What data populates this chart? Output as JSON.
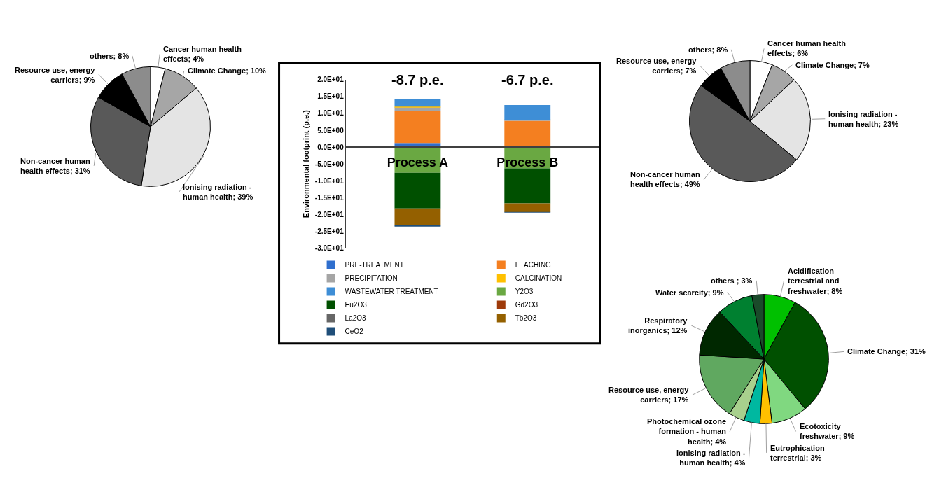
{
  "chart_data": [
    {
      "type": "pie",
      "categories": [
        "Cancer human health effects",
        "Climate Change",
        "Ionising radiation - human health",
        "Non-cancer human health effects",
        "Resource use, energy carriers",
        "others"
      ],
      "values": [
        4,
        10,
        39,
        31,
        9,
        8
      ],
      "value_labels": [
        "4%",
        "10%",
        "39%",
        "31%",
        "9%",
        "8%"
      ],
      "colors": [
        "#ffffff",
        "#a6a6a6",
        "#e4e4e4",
        "#595959",
        "#000000",
        "#8c8c8c"
      ]
    },
    {
      "type": "bar",
      "stacked": true,
      "categories": [
        "Process A",
        "Process B"
      ],
      "ylabel": "Environmental footprint (p.e.)",
      "ylim": [
        -30,
        20
      ],
      "yticks": [
        {
          "value": 20,
          "label": "2.0E+01"
        },
        {
          "value": 15,
          "label": "1.5E+01"
        },
        {
          "value": 10,
          "label": "1.0E+01"
        },
        {
          "value": 5,
          "label": "5.0E+00"
        },
        {
          "value": 0,
          "label": "0.0E+00"
        },
        {
          "value": -5,
          "label": "-5.0E+00"
        },
        {
          "value": -10,
          "label": "-1.0E+01"
        },
        {
          "value": -15,
          "label": "-1.5E+01"
        },
        {
          "value": -20,
          "label": "-2.0E+01"
        },
        {
          "value": -25,
          "label": "-2.5E+01"
        },
        {
          "value": -30,
          "label": "-3.0E+01"
        }
      ],
      "legend": "bottom",
      "annotations": [
        "-8.7 p.e.",
        "-6.7 p.e."
      ],
      "series": [
        {
          "name": "PRE-TREATMENT",
          "color": "#2f6fce",
          "values": [
            1.2,
            null
          ]
        },
        {
          "name": "LEACHING",
          "color": "#f47f20",
          "values": [
            9.4,
            7.8
          ]
        },
        {
          "name": "PRECIPITATION",
          "color": "#a5a5a5",
          "values": [
            1.2,
            0.2
          ]
        },
        {
          "name": "CALCINATION",
          "color": "#ffc000",
          "values": [
            0.2,
            0.1
          ]
        },
        {
          "name": "WASTEWATER TREATMENT",
          "color": "#3e8ed6",
          "values": [
            2.3,
            4.4
          ]
        },
        {
          "name": "Y2O3",
          "color": "#6aa842",
          "values": [
            -7.6,
            -6.3
          ]
        },
        {
          "name": "Eu2O3",
          "color": "#005000",
          "values": [
            -10.6,
            -10.4
          ]
        },
        {
          "name": "Gd2O3",
          "color": "#9e3a0a",
          "values": [
            null,
            null
          ]
        },
        {
          "name": "La2O3",
          "color": "#666666",
          "values": [
            null,
            null
          ]
        },
        {
          "name": "Tb2O3",
          "color": "#946000",
          "values": [
            -5.1,
            -2.6
          ]
        },
        {
          "name": "CeO2",
          "color": "#1f4e79",
          "values": [
            -0.2,
            -0.1
          ]
        }
      ]
    },
    {
      "type": "pie",
      "categories": [
        "Cancer human health effects",
        "Climate Change",
        "Ionising radiation - human health",
        "Non-cancer human health effects",
        "Resource use, energy carriers",
        "others"
      ],
      "values": [
        6,
        7,
        23,
        49,
        7,
        8
      ],
      "value_labels": [
        "6%",
        "7%",
        "23%",
        "49%",
        "7%",
        "8%"
      ],
      "colors": [
        "#ffffff",
        "#a6a6a6",
        "#e4e4e4",
        "#595959",
        "#000000",
        "#8c8c8c"
      ]
    },
    {
      "type": "pie",
      "categories": [
        "Acidification terrestrial and freshwater",
        "Climate Change",
        "Ecotoxicity freshwater",
        "Eutrophication terrestrial",
        "Ionising radiation - human health",
        "Photochemical ozone formation - human health",
        "Resource use, energy carriers",
        "Respiratory inorganics",
        "Water scarcity",
        "others "
      ],
      "values": [
        8,
        31,
        9,
        3,
        4,
        4,
        17,
        12,
        9,
        3
      ],
      "value_labels": [
        "8%",
        "31%",
        "9%",
        "3%",
        "4%",
        "4%",
        "17%",
        "12%",
        "9%",
        "3%"
      ],
      "colors": [
        "#00c000",
        "#005000",
        "#80d880",
        "#ffc000",
        "#00b8a0",
        "#a8d08d",
        "#60a860",
        "#002800",
        "#008030",
        "#1a4a2a"
      ]
    }
  ]
}
